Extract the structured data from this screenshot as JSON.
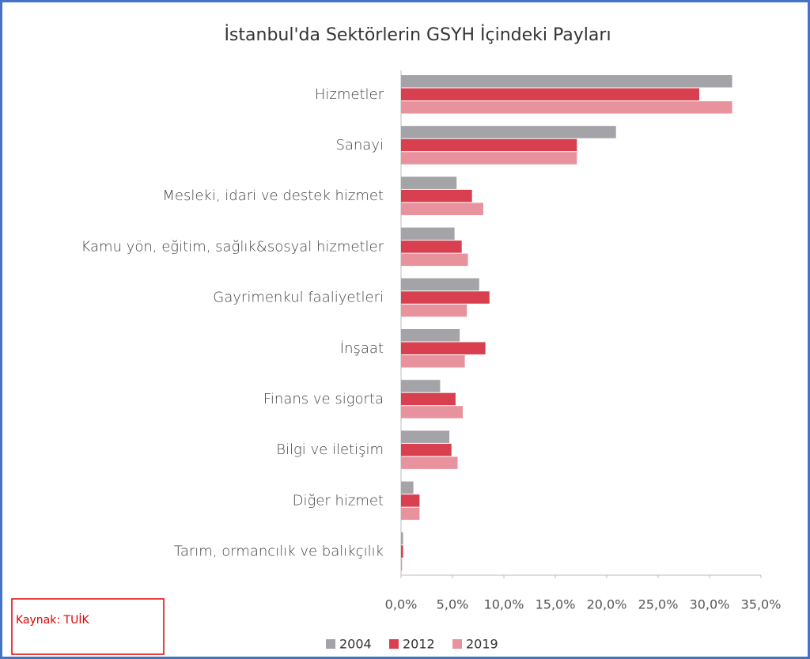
{
  "chart_data": {
    "type": "hbar",
    "title": "İstanbul'da Sektörlerin GSYH İçindeki Payları",
    "source": "Kaynak: TUİK",
    "categories": [
      "Hizmetler",
      "Sanayi",
      "Mesleki, idari ve destek hizmet",
      "Kamu yön, eğitim, sağlık&sosyal hizmetler",
      "Gayrimenkul faaliyetleri",
      "İnşaat",
      "Finans ve sigorta",
      "Bilgi ve iletişim",
      "Diğer hizmet",
      "Tarım, ormancılık ve balıkçılık"
    ],
    "series": [
      {
        "name": "2004",
        "color": "#a3a3a8",
        "values": [
          32.2,
          20.9,
          5.4,
          5.2,
          7.6,
          5.7,
          3.8,
          4.7,
          1.2,
          0.2
        ]
      },
      {
        "name": "2012",
        "color": "#d8404f",
        "values": [
          29.0,
          17.1,
          6.9,
          5.9,
          8.6,
          8.2,
          5.3,
          4.9,
          1.8,
          0.2
        ]
      },
      {
        "name": "2019",
        "color": "#e8929d",
        "values": [
          32.2,
          17.1,
          8.0,
          6.5,
          6.4,
          6.2,
          6.0,
          5.5,
          1.8,
          0.1
        ]
      }
    ],
    "xlim": [
      0,
      35
    ],
    "xticks": [
      {
        "value": 0,
        "label": "0,0%"
      },
      {
        "value": 5,
        "label": "5,0%"
      },
      {
        "value": 10,
        "label": "10,0%"
      },
      {
        "value": 15,
        "label": "15,0%"
      },
      {
        "value": 20,
        "label": "20,0%"
      },
      {
        "value": 25,
        "label": "25,0%"
      },
      {
        "value": 30,
        "label": "30,0%"
      },
      {
        "value": 35,
        "label": "35,0%"
      }
    ],
    "legend": "bottom"
  }
}
